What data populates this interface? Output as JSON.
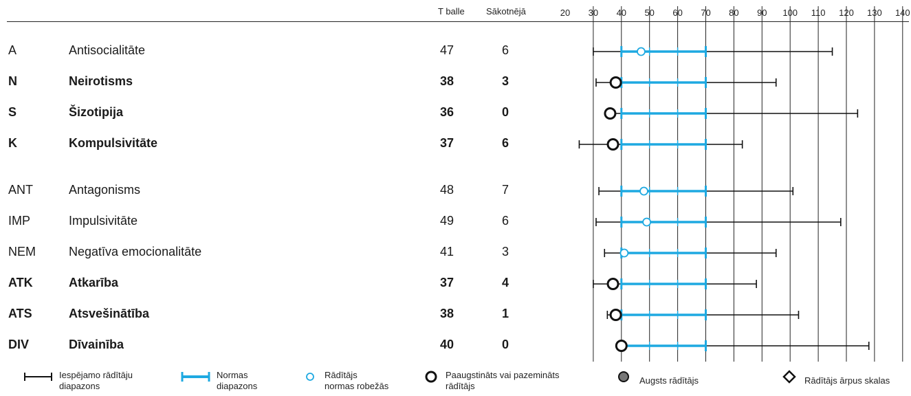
{
  "headers": {
    "t_score": "T balle",
    "raw_score": "Sākotnējā"
  },
  "chart_data": {
    "type": "range-dot",
    "x_ticks": [
      20,
      30,
      40,
      50,
      60,
      70,
      80,
      90,
      100,
      110,
      120,
      130,
      140
    ],
    "norm_range": [
      40,
      70
    ],
    "norm_ticks": [
      40,
      50,
      60,
      70
    ],
    "rows": [
      {
        "code": "A",
        "name": "Antisocialitāte",
        "t": 47,
        "raw": 6,
        "min": 30,
        "max": 115,
        "bold": false,
        "status": "normal"
      },
      {
        "code": "N",
        "name": "Neirotisms",
        "t": 38,
        "raw": 3,
        "min": 31,
        "max": 95,
        "bold": true,
        "status": "abnormal"
      },
      {
        "code": "S",
        "name": "Šizotipija",
        "t": 36,
        "raw": 0,
        "min": 36,
        "max": 124,
        "bold": true,
        "status": "abnormal"
      },
      {
        "code": "K",
        "name": "Kompulsivitāte",
        "t": 37,
        "raw": 6,
        "min": 25,
        "max": 83,
        "bold": true,
        "status": "abnormal"
      },
      {
        "code": "ANT",
        "name": "Antagonisms",
        "t": 48,
        "raw": 7,
        "min": 32,
        "max": 101,
        "bold": false,
        "status": "normal"
      },
      {
        "code": "IMP",
        "name": "Impulsivitāte",
        "t": 49,
        "raw": 6,
        "min": 31,
        "max": 118,
        "bold": false,
        "status": "normal"
      },
      {
        "code": "NEM",
        "name": "Negatīva emocionalitāte",
        "t": 41,
        "raw": 3,
        "min": 34,
        "max": 95,
        "bold": false,
        "status": "normal"
      },
      {
        "code": "ATK",
        "name": "Atkarība",
        "t": 37,
        "raw": 4,
        "min": 30,
        "max": 88,
        "bold": true,
        "status": "abnormal"
      },
      {
        "code": "ATS",
        "name": "Atsvešinātība",
        "t": 38,
        "raw": 1,
        "min": 35,
        "max": 103,
        "bold": true,
        "status": "abnormal"
      },
      {
        "code": "DIV",
        "name": "Dīvainība",
        "t": 40,
        "raw": 0,
        "min": 40,
        "max": 128,
        "bold": true,
        "status": "abnormal"
      }
    ]
  },
  "legend": {
    "range_line1": "Iespējamo rādītāju",
    "range_line2": "diapazons",
    "norm_line1": "Normas",
    "norm_line2": "diapazons",
    "within_line1": "Rādītājs",
    "within_line2": "normas robežās",
    "abnormal_line1": "Paaugstināts vai pazemināts",
    "abnormal_line2": "rādītājs",
    "high": "Augsts rādītājs",
    "outside": "Rādītājs ārpus skalas"
  },
  "colors": {
    "norm": "#1ea9e1",
    "line": "#111111",
    "grid": "#222222",
    "high_fill": "#777777"
  }
}
